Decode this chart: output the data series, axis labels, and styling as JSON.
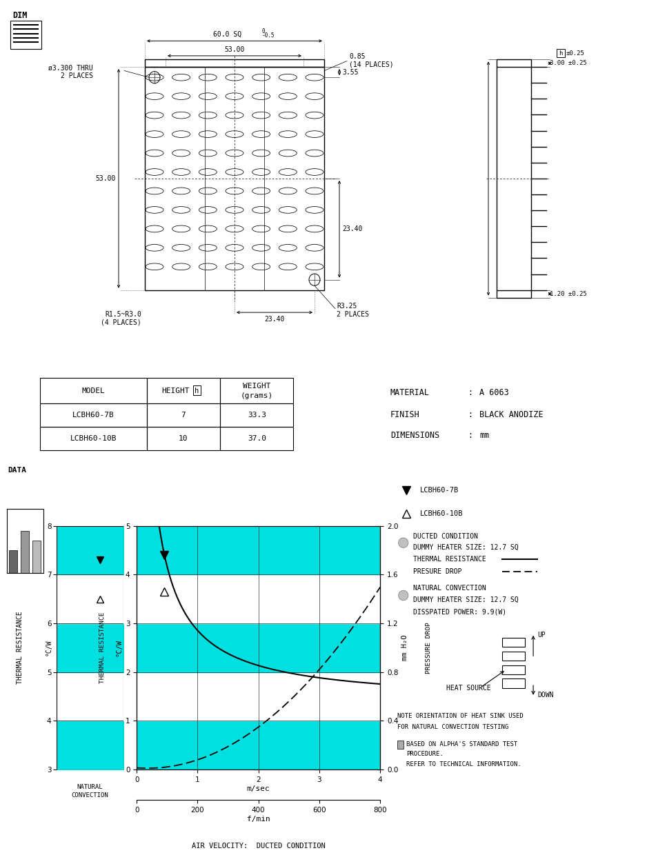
{
  "bg_color": "#ffffff",
  "black": "#000000",
  "cyan": "#00e0e0",
  "table": {
    "rows": [
      [
        "LCBH60-7B",
        "7",
        "33.3"
      ],
      [
        "LCBH60-10B",
        "10",
        "37.0"
      ]
    ]
  },
  "material_info": {
    "lines": [
      [
        "MATERIAL",
        ":",
        "A 6063"
      ],
      [
        "FINISH",
        ":",
        "BLACK ANODIZE"
      ],
      [
        "DIMENSIONS",
        ":",
        "mm"
      ]
    ]
  },
  "graph": {
    "xlim": [
      0,
      4
    ],
    "ylim_left": [
      0,
      5
    ],
    "ylim_right": [
      0,
      2.0
    ],
    "xlim_fmin": [
      0,
      800
    ],
    "xticks_msec": [
      0,
      1,
      2,
      3,
      4
    ],
    "xticks_fmin": [
      0,
      200,
      400,
      600,
      800
    ],
    "yticks_left": [
      0,
      1,
      2,
      3,
      4,
      5
    ],
    "yticks_right": [
      0.0,
      0.4,
      0.8,
      1.2,
      1.6,
      2.0
    ],
    "tr_x": [
      0.45,
      0.6,
      0.8,
      1.0,
      1.5,
      2.0,
      2.5,
      3.0,
      3.5,
      4.0
    ],
    "tr_y": [
      4.4,
      3.8,
      3.2,
      2.85,
      2.35,
      2.1,
      1.95,
      1.88,
      1.83,
      1.8
    ],
    "pd_x": [
      0.0,
      0.5,
      1.0,
      1.5,
      2.0,
      2.5,
      3.0,
      3.5,
      4.0
    ],
    "pd_y": [
      0.0,
      0.02,
      0.08,
      0.19,
      0.35,
      0.56,
      0.82,
      1.13,
      1.5
    ],
    "marker_7B_x": 0.45,
    "marker_7B_y": 4.4,
    "marker_10B_x": 0.45,
    "marker_10B_y": 3.65
  },
  "nat_conv": {
    "ylim": [
      3,
      8
    ],
    "yticks": [
      3,
      4,
      5,
      6,
      7,
      8
    ],
    "marker_7B_y": 7.3,
    "marker_10B_y": 6.5
  },
  "legend": {
    "7B_label": "LCBH60-7B",
    "10B_label": "LCBH60-10B",
    "ducted_label": "DUCTED CONDITION",
    "ducted_heater": "DUMMY HEATER SIZE: 12.7 SQ",
    "thermal_res_label": "THERMAL RESISTANCE",
    "pressure_drop_label": "PRESURE DROP",
    "nat_conv_label": "NATURAL CONVECTION",
    "nat_conv_heater": "DUMMY HEATER SIZE: 12.7 SQ",
    "nat_conv_power": "DISSPATED POWER: 9.9(W)",
    "note1": "NOTE ORIENTATION OF HEAT SINK USED",
    "note2": "FOR NATURAL CONVECTION TESTING",
    "alpha1": "BASED ON ALPHA'S STANDARD TEST",
    "alpha2": "PROCEDURE.",
    "alpha3": "REFER TO TECHNICAL INFORMATION."
  }
}
